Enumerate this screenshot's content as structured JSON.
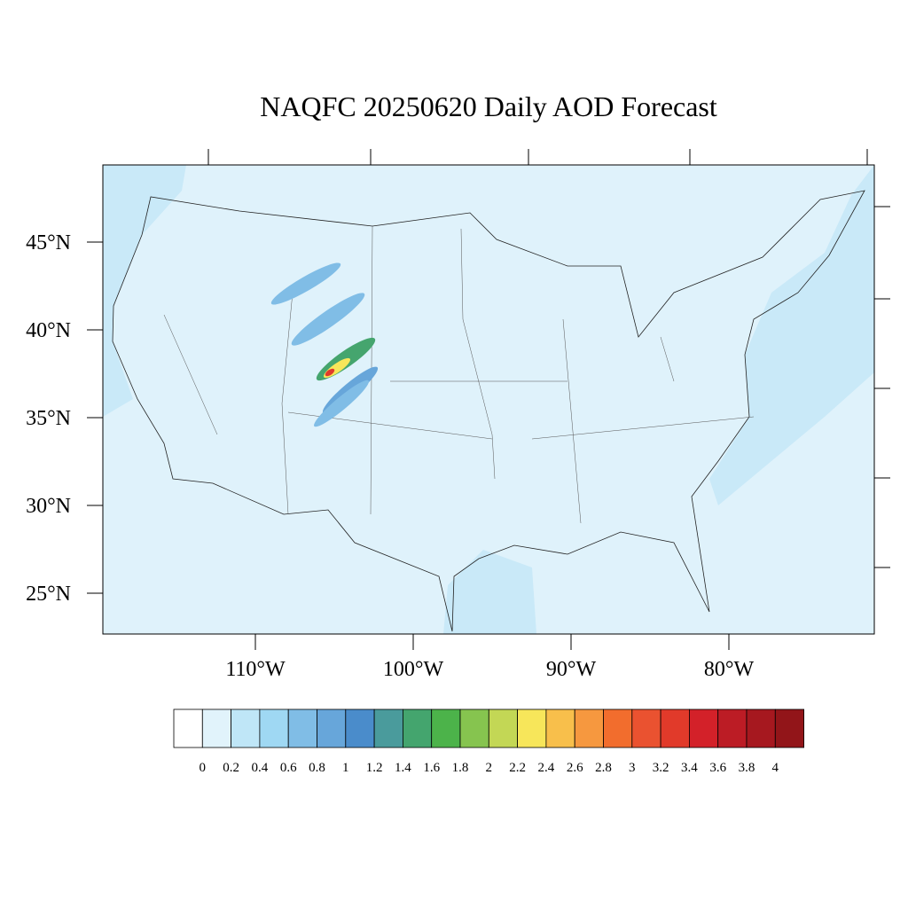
{
  "title": "NAQFC 20250620 Daily AOD Forecast",
  "map": {
    "lat_labels": [
      {
        "value": 45,
        "label": "45°N"
      },
      {
        "value": 40,
        "label": "40°N"
      },
      {
        "value": 35,
        "label": "35°N"
      },
      {
        "value": 30,
        "label": "30°N"
      },
      {
        "value": 25,
        "label": "25°N"
      }
    ],
    "lon_labels": [
      {
        "value": -110,
        "label": "110°W"
      },
      {
        "value": -100,
        "label": "100°W"
      },
      {
        "value": -90,
        "label": "90°W"
      },
      {
        "value": -80,
        "label": "80°W"
      }
    ]
  },
  "colorbar": {
    "labels": [
      "0",
      "0.2",
      "0.4",
      "0.6",
      "0.8",
      "1",
      "1.2",
      "1.4",
      "1.6",
      "1.8",
      "2",
      "2.2",
      "2.4",
      "2.6",
      "2.8",
      "3",
      "3.2",
      "3.4",
      "3.6",
      "3.8",
      "4"
    ],
    "colors": [
      "#ffffff",
      "#e1f3fb",
      "#bfe6f7",
      "#9fd8f3",
      "#80bde6",
      "#67a6da",
      "#4a8ccb",
      "#4a9b9c",
      "#44a56e",
      "#4cb34a",
      "#86c44f",
      "#c3d755",
      "#f7e65a",
      "#f8bf4b",
      "#f6983f",
      "#f26d2d",
      "#ea5230",
      "#e13a2a",
      "#d32129",
      "#bc1c25",
      "#a6181f",
      "#921519"
    ]
  }
}
